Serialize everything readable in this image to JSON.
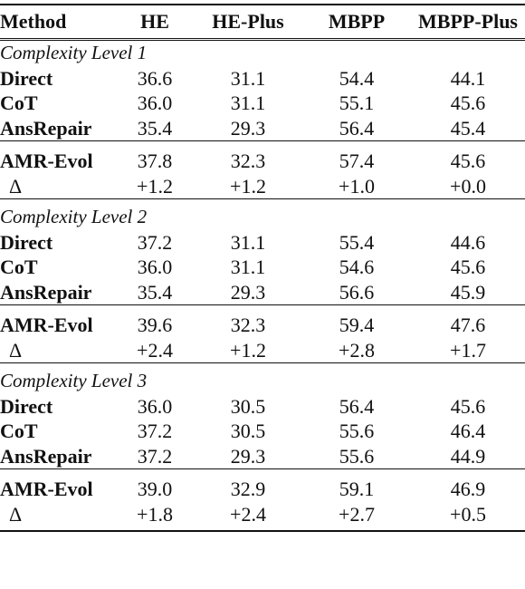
{
  "header": {
    "method": "Method",
    "he": "HE",
    "he_plus": "HE-Plus",
    "mbpp": "MBPP",
    "mbpp_plus": "MBPP-Plus"
  },
  "levels": [
    {
      "title": "Complexity Level 1",
      "baselines": [
        {
          "method": "Direct",
          "he": "36.6",
          "he_plus": "31.1",
          "mbpp": "54.4",
          "mbpp_plus": "44.1"
        },
        {
          "method": "CoT",
          "he": "36.0",
          "he_plus": "31.1",
          "mbpp": "55.1",
          "mbpp_plus": "45.6"
        },
        {
          "method": "AnsRepair",
          "he": "35.4",
          "he_plus": "29.3",
          "mbpp": "56.4",
          "mbpp_plus": "45.4"
        }
      ],
      "ours": {
        "method": "AMR-Evol",
        "he": "37.8",
        "he_plus": "32.3",
        "mbpp": "57.4",
        "mbpp_plus": "45.6"
      },
      "delta": {
        "method": "Δ",
        "he": "+1.2",
        "he_plus": "+1.2",
        "mbpp": "+1.0",
        "mbpp_plus": "+0.0"
      }
    },
    {
      "title": "Complexity Level 2",
      "baselines": [
        {
          "method": "Direct",
          "he": "37.2",
          "he_plus": "31.1",
          "mbpp": "55.4",
          "mbpp_plus": "44.6"
        },
        {
          "method": "CoT",
          "he": "36.0",
          "he_plus": "31.1",
          "mbpp": "54.6",
          "mbpp_plus": "45.6"
        },
        {
          "method": "AnsRepair",
          "he": "35.4",
          "he_plus": "29.3",
          "mbpp": "56.6",
          "mbpp_plus": "45.9"
        }
      ],
      "ours": {
        "method": "AMR-Evol",
        "he": "39.6",
        "he_plus": "32.3",
        "mbpp": "59.4",
        "mbpp_plus": "47.6"
      },
      "delta": {
        "method": "Δ",
        "he": "+2.4",
        "he_plus": "+1.2",
        "mbpp": "+2.8",
        "mbpp_plus": "+1.7"
      }
    },
    {
      "title": "Complexity Level 3",
      "baselines": [
        {
          "method": "Direct",
          "he": "36.0",
          "he_plus": "30.5",
          "mbpp": "56.4",
          "mbpp_plus": "45.6"
        },
        {
          "method": "CoT",
          "he": "37.2",
          "he_plus": "30.5",
          "mbpp": "55.6",
          "mbpp_plus": "46.4"
        },
        {
          "method": "AnsRepair",
          "he": "37.2",
          "he_plus": "29.3",
          "mbpp": "55.6",
          "mbpp_plus": "44.9"
        }
      ],
      "ours": {
        "method": "AMR-Evol",
        "he": "39.0",
        "he_plus": "32.9",
        "mbpp": "59.1",
        "mbpp_plus": "46.9"
      },
      "delta": {
        "method": "Δ",
        "he": "+1.8",
        "he_plus": "+2.4",
        "mbpp": "+2.7",
        "mbpp_plus": "+0.5"
      }
    }
  ]
}
